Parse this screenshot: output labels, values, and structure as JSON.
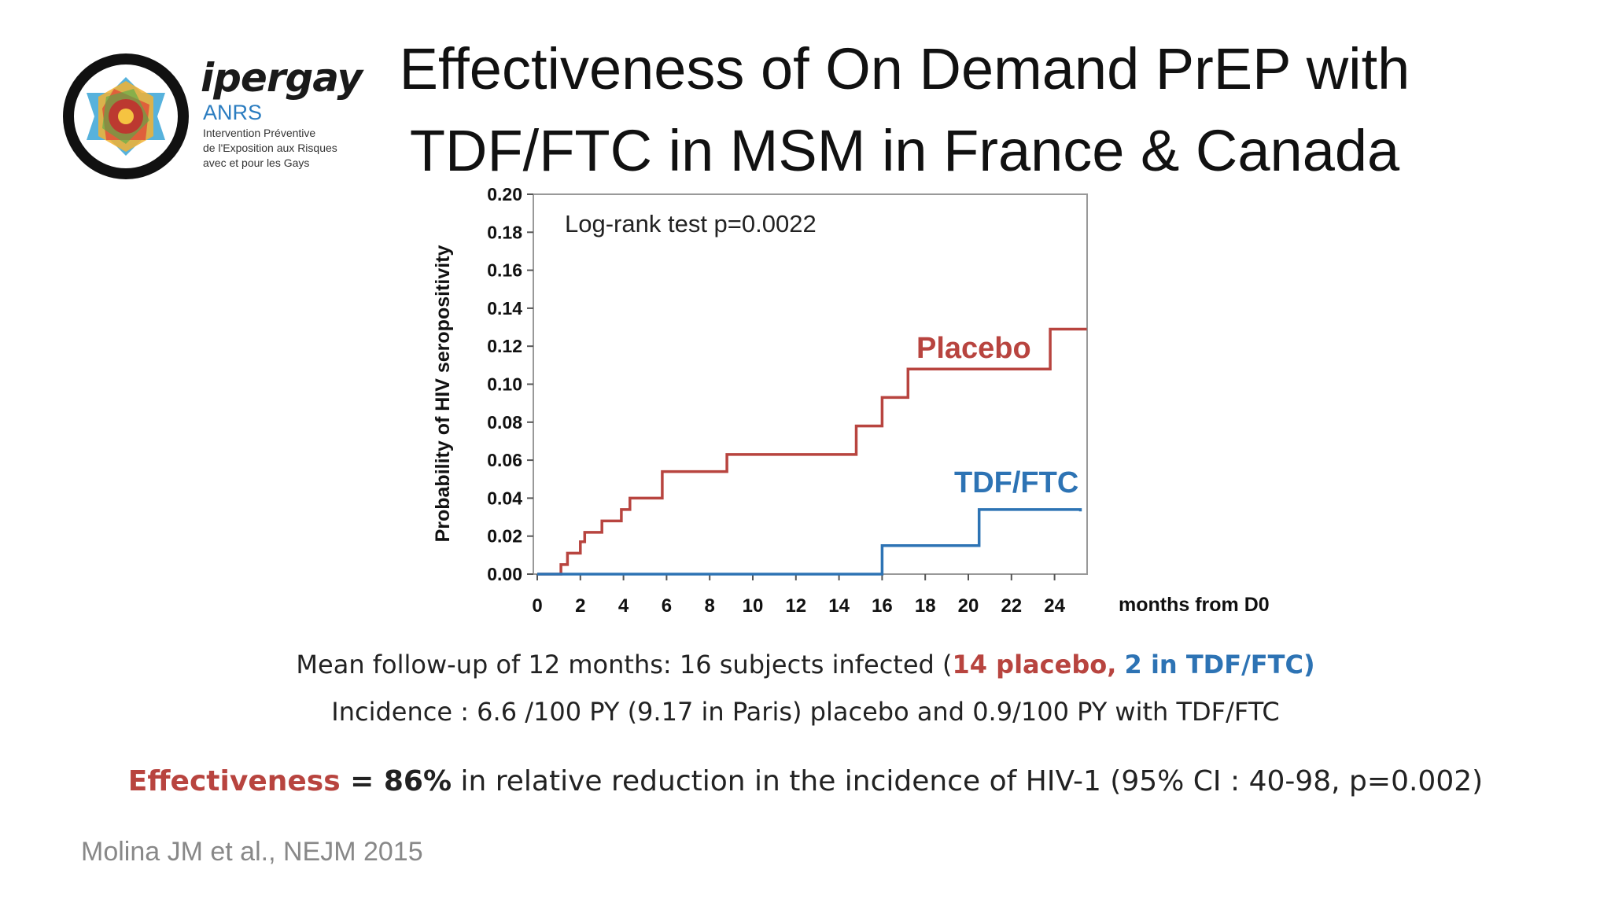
{
  "logo": {
    "brand": "ipergay",
    "sub": "ANRS",
    "tagline": [
      "Intervention Préventive",
      "de l'Exposition aux Risques",
      "avec et pour les Gays"
    ]
  },
  "title": {
    "line1": "Effectiveness of On Demand PrEP with",
    "line2": "TDF/FTC in MSM in France & Canada"
  },
  "colors": {
    "placebo": "#b8443f",
    "tdf": "#2d73b4"
  },
  "chart_data": {
    "type": "line",
    "annotation": "Log-rank test p=0.0022",
    "ylabel": "Probability of HIV seropositivity",
    "xlabel": "months from D0",
    "xlim": [
      0,
      25.5
    ],
    "ylim": [
      0,
      0.2
    ],
    "xticks": [
      0,
      2,
      4,
      6,
      8,
      10,
      12,
      14,
      16,
      18,
      20,
      22,
      24
    ],
    "xtick_labels": [
      "0",
      "2",
      "4",
      "6",
      "8",
      "10",
      "12",
      "14",
      "16",
      "18",
      "20",
      "22",
      "24"
    ],
    "yticks": [
      0,
      0.02,
      0.04,
      0.06,
      0.08,
      0.1,
      0.12,
      0.14,
      0.16,
      0.18,
      0.2
    ],
    "ytick_labels": [
      "0.00",
      "0.02",
      "0.04",
      "0.06",
      "0.08",
      "0.10",
      "0.12",
      "0.14",
      "0.16",
      "0.18",
      "0.20"
    ],
    "step": true,
    "series": [
      {
        "name": "Placebo",
        "color": "#b8443f",
        "x": [
          0,
          1.1,
          1.4,
          2.0,
          2.2,
          3.0,
          3.9,
          4.3,
          5.8,
          8.8,
          14.8,
          16.0,
          17.2,
          23.8,
          25.5
        ],
        "y": [
          0,
          0.005,
          0.011,
          0.017,
          0.022,
          0.028,
          0.034,
          0.04,
          0.054,
          0.063,
          0.078,
          0.093,
          0.108,
          0.129,
          0.129
        ]
      },
      {
        "name": "TDF/FTC",
        "color": "#2d73b4",
        "x": [
          0,
          16.0,
          20.5,
          25.2
        ],
        "y": [
          0,
          0.015,
          0.034,
          0.033
        ]
      }
    ]
  },
  "caption1": {
    "prefix": "Mean follow-up of 12 months: 16 subjects infected  (",
    "placebo": "14 placebo,",
    "tdf": "2 in TDF/FTC)"
  },
  "caption2": "Incidence : 6.6 /100 PY (9.17 in Paris) placebo and 0.9/100 PY with TDF/FTC",
  "caption3": {
    "word": "Effectiveness",
    "eq": " = 86%",
    "rest": " in relative reduction in the incidence of HIV-1 (95% CI : 40-98, p=0.002)"
  },
  "credit": "Molina JM et al., NEJM 2015"
}
